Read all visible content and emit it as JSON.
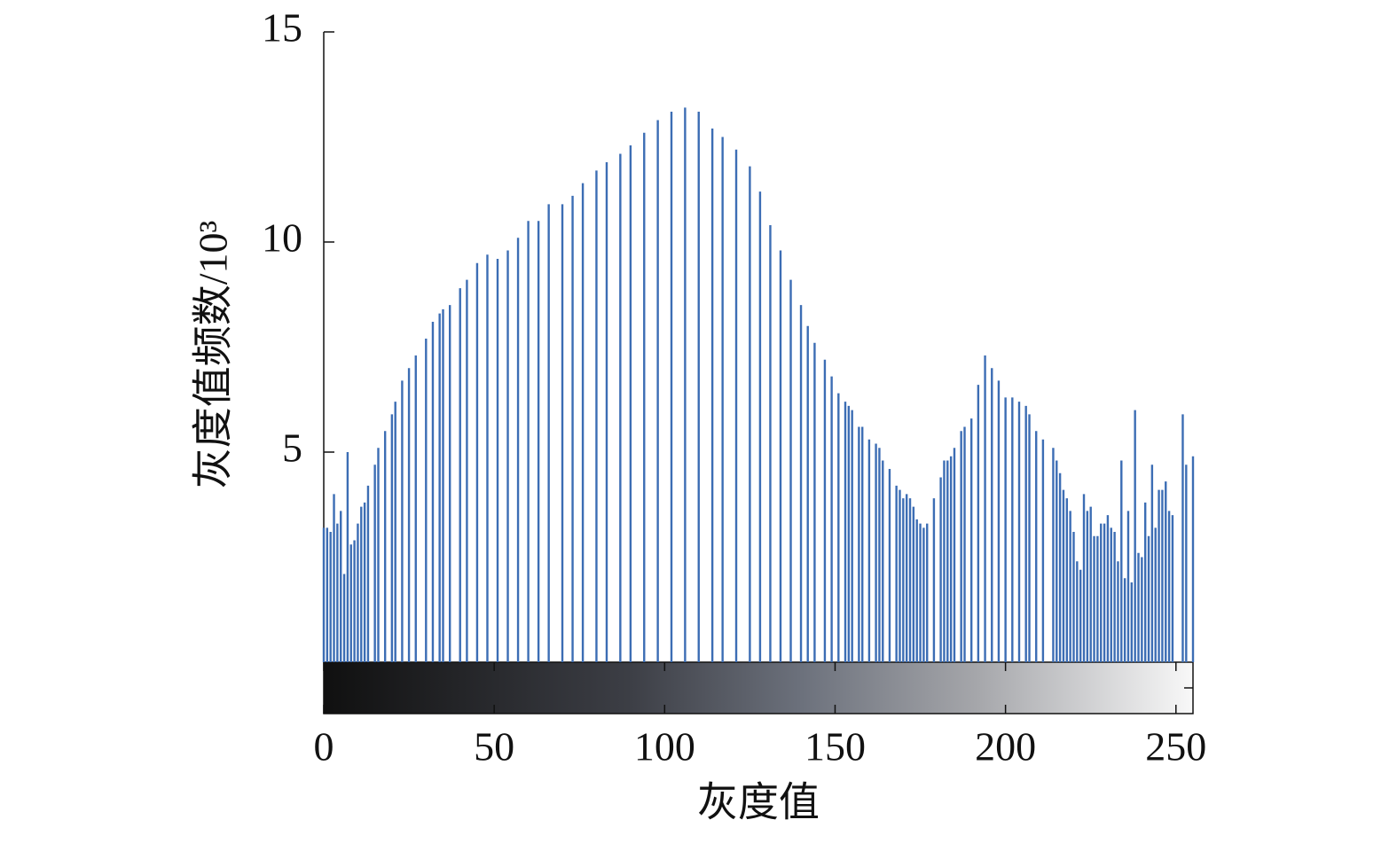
{
  "chart_data": {
    "type": "bar",
    "xlabel": "灰度值",
    "ylabel": "灰度值频数/10³",
    "color": "#3c6db4",
    "xlim": [
      0,
      255
    ],
    "xticks": [
      0,
      50,
      100,
      150,
      200,
      250
    ],
    "ylim": [
      0,
      15
    ],
    "yticks": [
      5,
      10,
      15
    ],
    "grid": false,
    "x": [
      0,
      1,
      2,
      3,
      4,
      5,
      6,
      7,
      8,
      9,
      10,
      11,
      12,
      13,
      15,
      16,
      18,
      20,
      21,
      23,
      25,
      27,
      30,
      32,
      34,
      35,
      37,
      40,
      42,
      45,
      48,
      51,
      54,
      57,
      60,
      63,
      66,
      70,
      73,
      76,
      80,
      83,
      87,
      90,
      94,
      98,
      102,
      106,
      110,
      114,
      117,
      121,
      125,
      128,
      131,
      134,
      137,
      140,
      142,
      144,
      147,
      149,
      151,
      153,
      154,
      155,
      157,
      158,
      160,
      162,
      163,
      164,
      166,
      168,
      169,
      170,
      171,
      172,
      173,
      174,
      175,
      176,
      177,
      179,
      181,
      182,
      183,
      184,
      185,
      187,
      188,
      190,
      192,
      194,
      196,
      198,
      200,
      202,
      204,
      206,
      207,
      209,
      211,
      214,
      215,
      216,
      217,
      218,
      219,
      220,
      221,
      222,
      223,
      224,
      225,
      226,
      227,
      228,
      229,
      230,
      231,
      232,
      233,
      234,
      235,
      236,
      237,
      238,
      239,
      240,
      241,
      242,
      243,
      244,
      245,
      246,
      247,
      248,
      249,
      252,
      253,
      255
    ],
    "values": [
      3.2,
      3.2,
      3.1,
      4.0,
      3.3,
      3.6,
      2.1,
      5.0,
      2.8,
      2.9,
      3.3,
      3.7,
      3.8,
      4.2,
      4.7,
      5.1,
      5.5,
      5.9,
      6.2,
      6.7,
      7.0,
      7.3,
      7.7,
      8.1,
      8.3,
      8.4,
      8.5,
      8.9,
      9.1,
      9.5,
      9.7,
      9.6,
      9.8,
      10.1,
      10.5,
      10.5,
      10.9,
      10.9,
      11.1,
      11.4,
      11.7,
      11.9,
      12.1,
      12.3,
      12.6,
      12.9,
      13.1,
      13.2,
      13.1,
      12.7,
      12.5,
      12.2,
      11.8,
      11.2,
      10.4,
      9.8,
      9.1,
      8.5,
      8.0,
      7.6,
      7.2,
      6.8,
      6.4,
      6.2,
      6.1,
      6.0,
      5.6,
      5.6,
      5.3,
      5.2,
      5.1,
      4.8,
      4.6,
      4.2,
      4.1,
      3.9,
      4.0,
      3.9,
      3.7,
      3.4,
      3.3,
      3.2,
      3.3,
      3.9,
      4.4,
      4.8,
      4.8,
      4.9,
      5.1,
      5.5,
      5.6,
      5.8,
      6.6,
      7.3,
      7.0,
      6.7,
      6.3,
      6.3,
      6.2,
      6.1,
      5.9,
      5.5,
      5.3,
      5.1,
      4.8,
      4.5,
      4.1,
      3.9,
      3.6,
      3.1,
      2.4,
      2.2,
      4.0,
      3.6,
      3.7,
      3.0,
      3.0,
      3.3,
      3.3,
      3.5,
      3.2,
      3.1,
      2.4,
      4.8,
      2.0,
      3.6,
      1.9,
      6.0,
      2.6,
      2.5,
      3.8,
      3.0,
      4.7,
      3.2,
      4.1,
      4.1,
      4.3,
      3.6,
      3.5,
      5.9,
      4.7,
      4.9
    ]
  }
}
